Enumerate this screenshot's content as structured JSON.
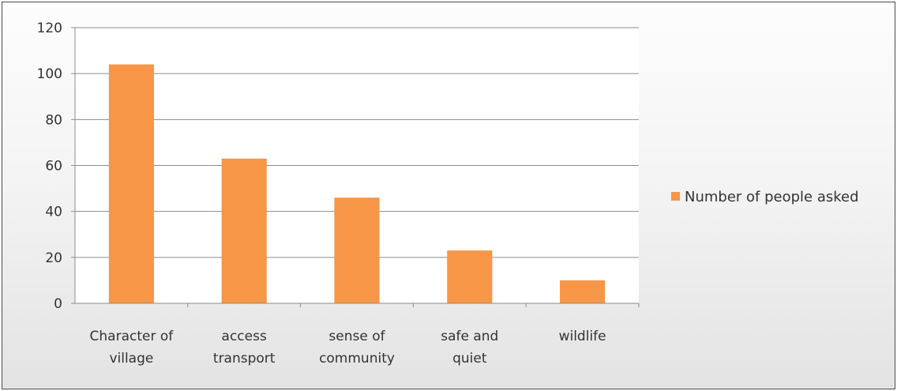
{
  "chart_data": {
    "type": "bar",
    "categories": [
      [
        "Character of",
        "village"
      ],
      [
        "access",
        "transport"
      ],
      [
        "sense of",
        "community"
      ],
      [
        "safe and",
        "quiet"
      ],
      [
        "wildlife"
      ]
    ],
    "series": [
      {
        "name": "Number of people asked",
        "values": [
          104,
          63,
          46,
          23,
          10
        ],
        "color": "#f79646"
      }
    ],
    "ylim": [
      0,
      120
    ],
    "yticks": [
      0,
      20,
      40,
      60,
      80,
      100,
      120
    ],
    "grid": true,
    "legend_position": "right"
  }
}
